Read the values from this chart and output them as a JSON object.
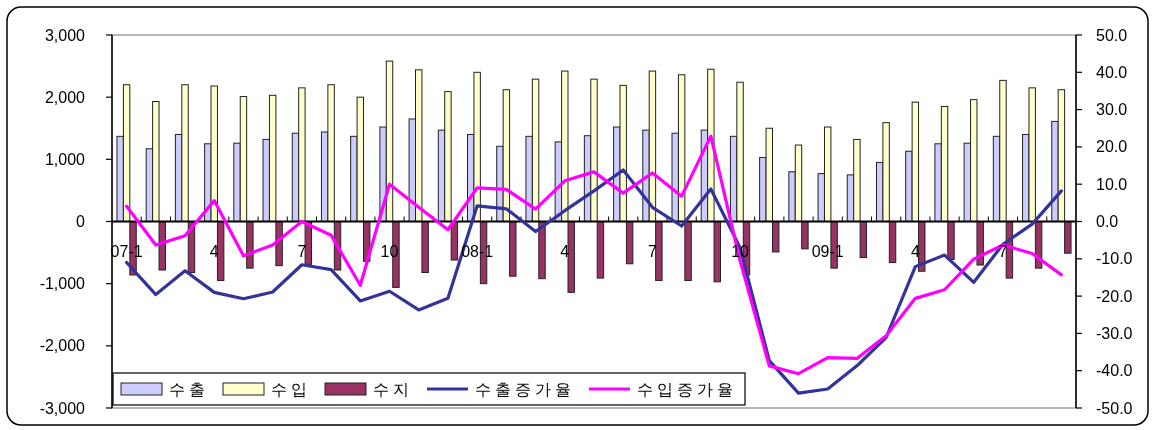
{
  "chart_data": {
    "type": "bar",
    "categories": [
      "07-1",
      null,
      null,
      "4",
      null,
      null,
      "7",
      null,
      null,
      "10",
      null,
      null,
      "08-1",
      null,
      null,
      "4",
      null,
      null,
      "7",
      null,
      null,
      "10",
      null,
      null,
      "09-1",
      null,
      null,
      "4",
      null,
      null,
      "7",
      null,
      null
    ],
    "series": [
      {
        "name": "수출",
        "color": "#ccccff",
        "values": [
          1370,
          1170,
          1400,
          1250,
          1260,
          1320,
          1420,
          1440,
          1370,
          1520,
          1650,
          1470,
          1400,
          1210,
          1370,
          1280,
          1380,
          1520,
          1470,
          1420,
          1470,
          1370,
          1030,
          800,
          770,
          750,
          950,
          1130,
          1250,
          1260,
          1370,
          1400,
          1610
        ]
      },
      {
        "name": "수입",
        "color": "#ffffcc",
        "values": [
          2200,
          1930,
          2200,
          2180,
          2010,
          2030,
          2150,
          2200,
          2000,
          2580,
          2440,
          2090,
          2400,
          2120,
          2290,
          2420,
          2290,
          2190,
          2420,
          2360,
          2450,
          2240,
          1500,
          1230,
          1520,
          1320,
          1590,
          1920,
          1850,
          1960,
          2270,
          2150,
          2120
        ]
      },
      {
        "name": "수지",
        "color": "#993366",
        "values": [
          -860,
          -780,
          -820,
          -950,
          -750,
          -710,
          -690,
          -780,
          -640,
          -1060,
          -820,
          -620,
          -1000,
          -880,
          -920,
          -1140,
          -910,
          -680,
          -950,
          -950,
          -970,
          -860,
          -490,
          -440,
          -750,
          -580,
          -660,
          -800,
          -610,
          -700,
          -910,
          -750,
          -510
        ]
      },
      {
        "name": "수출증가율",
        "type": "line",
        "axis": "y2",
        "color": "#333399",
        "values": [
          -11.0,
          -19.6,
          -13.2,
          -19.0,
          -20.7,
          -18.9,
          -11.6,
          -12.9,
          -21.3,
          -18.7,
          -23.7,
          -20.6,
          4.2,
          3.4,
          -2.7,
          2.9,
          8.2,
          13.8,
          3.8,
          -1.2,
          8.7,
          -7.0,
          -37.3,
          -46.0,
          -44.9,
          -38.7,
          -31.1,
          -12.1,
          -9.0,
          -16.3,
          -6.1,
          -0.7,
          8.2
        ]
      },
      {
        "name": "수입증가율",
        "type": "line",
        "axis": "y2",
        "color": "#ff00ff",
        "values": [
          4.1,
          -6.3,
          -3.8,
          5.6,
          -9.2,
          -6.3,
          0.0,
          -3.7,
          -17.1,
          10.0,
          3.8,
          -2.2,
          9.0,
          8.6,
          3.3,
          10.9,
          13.3,
          7.6,
          13.0,
          6.8,
          22.9,
          -10.5,
          -38.7,
          -40.8,
          -36.5,
          -36.7,
          -30.6,
          -20.6,
          -18.3,
          -10.1,
          -6.3,
          -8.6,
          -14.3
        ]
      }
    ],
    "ylim": [
      -3000,
      3000
    ],
    "yticks": [
      {
        "value": -3000,
        "label": "-3,000"
      },
      {
        "value": -2000,
        "label": "-2,000"
      },
      {
        "value": -1000,
        "label": "-1,000"
      },
      0,
      {
        "value": 1000,
        "label": "1,000"
      },
      {
        "value": 2000,
        "label": "2,000"
      },
      {
        "value": 3000,
        "label": "3,000"
      }
    ],
    "y2lim": [
      -50,
      50
    ],
    "y2ticks": [
      {
        "value": -50,
        "label": "-50.0"
      },
      {
        "value": -40,
        "label": "-40.0"
      },
      {
        "value": -30,
        "label": "-30.0"
      },
      {
        "value": -20,
        "label": "-20.0"
      },
      {
        "value": -10,
        "label": "-10.0"
      },
      {
        "value": 0,
        "label": "0.0"
      },
      {
        "value": 10,
        "label": "10.0"
      },
      {
        "value": 20,
        "label": "20.0"
      },
      {
        "value": 30,
        "label": "30.0"
      },
      {
        "value": 40,
        "label": "40.0"
      },
      {
        "value": 50,
        "label": "50.0"
      }
    ],
    "legend": "bottom left"
  }
}
